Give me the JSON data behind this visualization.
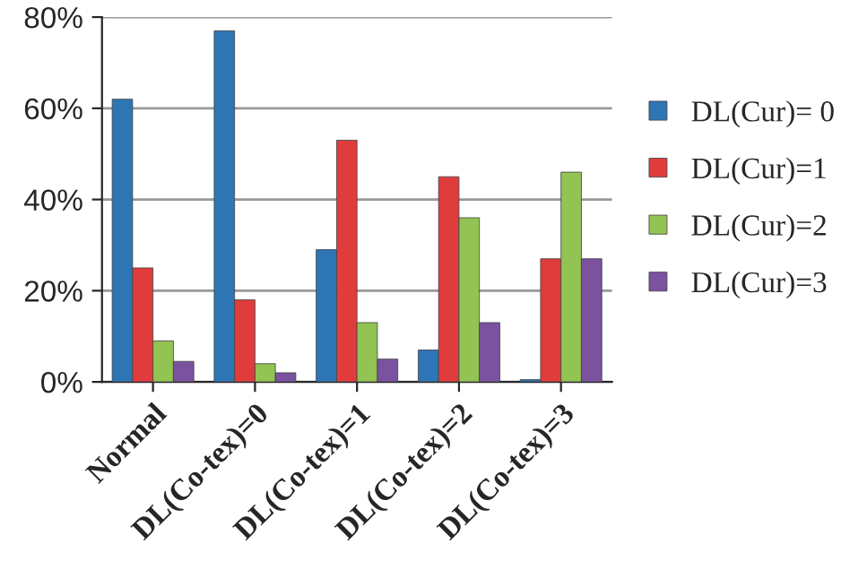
{
  "chart_data": {
    "type": "bar",
    "categories": [
      "Normal",
      "DL(Co-tex)=0",
      "DL(Co-tex)=1",
      "DL(Co-tex)=2",
      "DL(Co-tex)=3"
    ],
    "series": [
      {
        "name": "DL(Cur)= 0",
        "color": "#2e75b6",
        "values": [
          62,
          77,
          29,
          7,
          0.5
        ]
      },
      {
        "name": "DL(Cur)=1",
        "color": "#e03c3c",
        "values": [
          25,
          18,
          53,
          45,
          27
        ]
      },
      {
        "name": "DL(Cur)=2",
        "color": "#92c353",
        "values": [
          9,
          4,
          13,
          36,
          46
        ]
      },
      {
        "name": "DL(Cur)=3",
        "color": "#7a52a0",
        "values": [
          4.5,
          2,
          5,
          13,
          27
        ]
      }
    ],
    "ylim": [
      0,
      80
    ],
    "yticks": [
      {
        "value": 0,
        "label": "0%"
      },
      {
        "value": 20,
        "label": "20%"
      },
      {
        "value": 40,
        "label": "40%"
      },
      {
        "value": 60,
        "label": "60%"
      },
      {
        "value": 80,
        "label": "80%"
      }
    ],
    "grid": "y",
    "legend": "right"
  }
}
